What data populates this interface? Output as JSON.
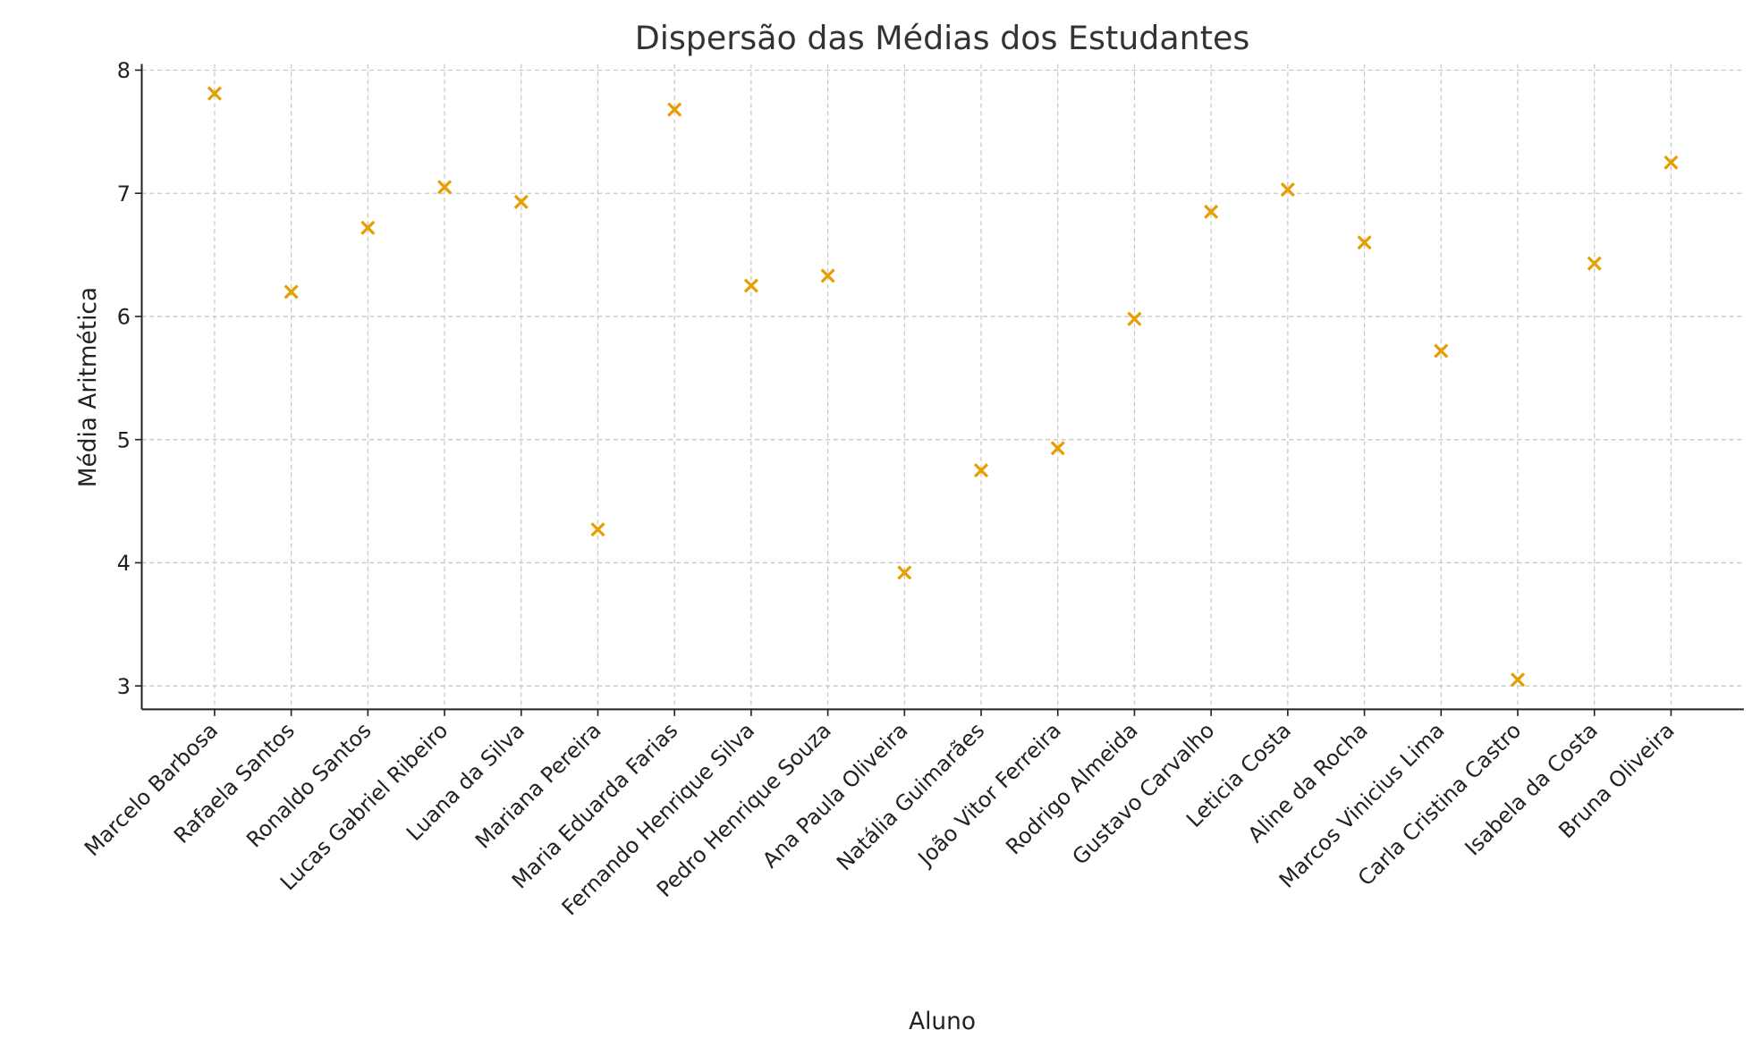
{
  "chart_data": {
    "type": "scatter",
    "title": "Dispersão das Médias dos Estudantes",
    "xlabel": "Aluno",
    "ylabel": "Média Aritmética",
    "categories": [
      "Marcelo Barbosa",
      "Rafaela Santos",
      "Ronaldo Santos",
      "Lucas Gabriel Ribeiro",
      "Luana da Silva",
      "Mariana Pereira",
      "Maria Eduarda Farias",
      "Fernando Henrique Silva",
      "Pedro Henrique Souza",
      "Ana Paula Oliveira",
      "Natália Guimarães",
      "João Vitor Ferreira",
      "Rodrigo Almeida",
      "Gustavo Carvalho",
      "Leticia Costa",
      "Aline da Rocha",
      "Marcos Vinicius Lima",
      "Carla Cristina Castro",
      "Isabela da Costa",
      "Bruna Oliveira"
    ],
    "values": [
      7.81,
      6.2,
      6.72,
      7.05,
      6.93,
      4.27,
      7.68,
      6.25,
      6.33,
      3.92,
      4.75,
      4.93,
      5.98,
      6.85,
      7.03,
      6.6,
      5.72,
      3.05,
      6.43,
      7.25
    ],
    "yticks": [
      3,
      4,
      5,
      6,
      7,
      8
    ],
    "ylim": [
      2.81,
      8.05
    ],
    "grid": true,
    "marker": "x",
    "color": "#E69F00"
  }
}
